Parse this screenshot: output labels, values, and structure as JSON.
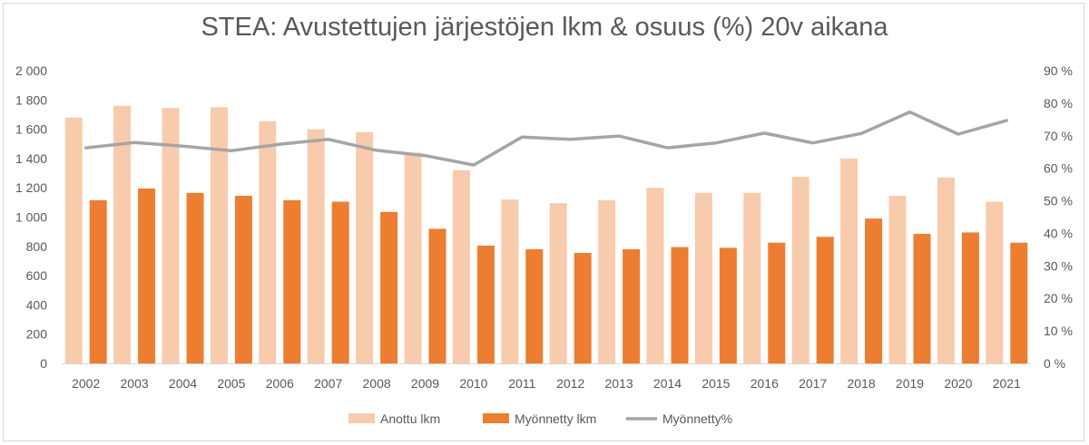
{
  "chart_data": {
    "type": "bar",
    "title": "STEA: Avustettujen järjestöjen lkm & osuus (%) 20v aikana",
    "categories": [
      "2002",
      "2003",
      "2004",
      "2005",
      "2006",
      "2007",
      "2008",
      "2009",
      "2010",
      "2011",
      "2012",
      "2013",
      "2014",
      "2015",
      "2016",
      "2017",
      "2018",
      "2019",
      "2020",
      "2021"
    ],
    "series": [
      {
        "name": "Anottu lkm",
        "type": "bar",
        "axis": "left",
        "color": "#f8cbad",
        "values": [
          1680,
          1760,
          1745,
          1750,
          1655,
          1600,
          1580,
          1440,
          1320,
          1120,
          1095,
          1115,
          1200,
          1165,
          1165,
          1275,
          1400,
          1145,
          1270,
          1105
        ]
      },
      {
        "name": "Myönnetty lkm",
        "type": "bar",
        "axis": "left",
        "color": "#ed7d31",
        "values": [
          1115,
          1195,
          1165,
          1145,
          1115,
          1105,
          1035,
          920,
          805,
          780,
          755,
          780,
          795,
          790,
          825,
          865,
          990,
          885,
          895,
          825
        ]
      },
      {
        "name": "Myönnetty%",
        "type": "line",
        "axis": "right",
        "color": "#a5a5a5",
        "values": [
          66.3,
          67.9,
          66.8,
          65.4,
          67.4,
          68.9,
          65.5,
          63.9,
          61.0,
          69.6,
          68.9,
          69.9,
          66.3,
          67.8,
          70.8,
          67.8,
          70.7,
          77.3,
          70.5,
          74.7
        ]
      }
    ],
    "y_left": {
      "min": 0,
      "max": 2000,
      "step": 200,
      "tick_labels": [
        "0",
        "200",
        "400",
        "600",
        "800",
        "1 000",
        "1 200",
        "1 400",
        "1 600",
        "1 800",
        "2 000"
      ]
    },
    "y_right": {
      "min": 0,
      "max": 90,
      "step": 10,
      "tick_labels": [
        "0 %",
        "10 %",
        "20 %",
        "30 %",
        "40 %",
        "50 %",
        "60 %",
        "70 %",
        "80 %",
        "90 %"
      ]
    },
    "grid": false,
    "legend_position": "bottom"
  }
}
